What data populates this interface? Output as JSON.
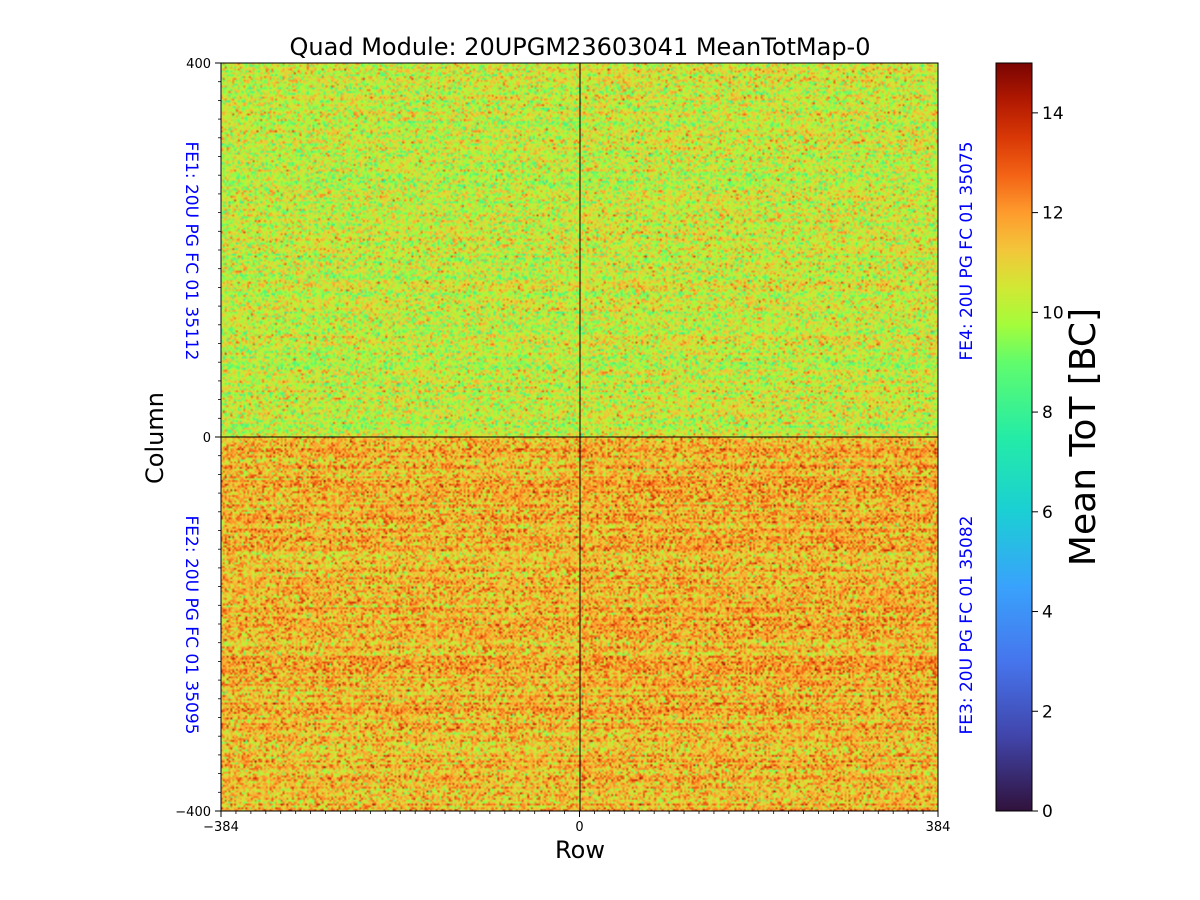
{
  "chart_data": {
    "type": "heatmap",
    "title": "Quad Module: 20UPGM23603041 MeanTotMap-0",
    "xlabel": "Row",
    "ylabel": "Column",
    "xlim": [
      -384,
      384
    ],
    "ylim": [
      -400,
      400
    ],
    "x_ticks": [
      "−384",
      "0",
      "384"
    ],
    "y_ticks": [
      "400",
      "0",
      "−400"
    ],
    "colorbar": {
      "label": "Mean ToT [BC]",
      "range": [
        0,
        15
      ],
      "ticks": [
        "0",
        "2",
        "4",
        "6",
        "8",
        "10",
        "12",
        "14"
      ],
      "colormap": "turbo"
    },
    "quadrants": [
      {
        "label": "FE1: 20U PG FC 01 35112",
        "x_range": [
          -384,
          0
        ],
        "y_range": [
          0,
          400
        ],
        "approx_mean_tot": 10.3
      },
      {
        "label": "FE4: 20U PG FC 01 35075",
        "x_range": [
          0,
          384
        ],
        "y_range": [
          0,
          400
        ],
        "approx_mean_tot": 10.4
      },
      {
        "label": "FE2: 20U PG FC 01 35095",
        "x_range": [
          -384,
          0
        ],
        "y_range": [
          -400,
          0
        ],
        "approx_mean_tot": 11.5
      },
      {
        "label": "FE3: 20U PG FC 01 35082",
        "x_range": [
          0,
          384
        ],
        "y_range": [
          -400,
          0
        ],
        "approx_mean_tot": 11.6
      }
    ]
  }
}
